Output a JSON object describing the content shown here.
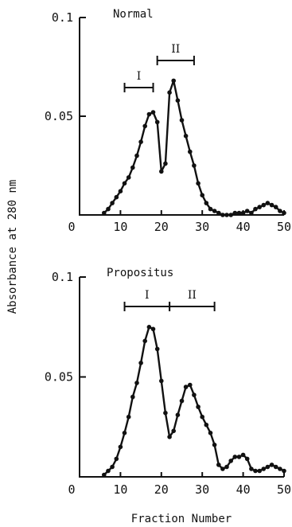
{
  "chart_data": [
    {
      "type": "line",
      "title": "Normal",
      "xlabel": "Fraction Number",
      "ylabel": "Absorbance at 280 nm",
      "xlim": [
        0,
        50
      ],
      "ylim": [
        0,
        0.1
      ],
      "x_ticks": [
        "0",
        "10",
        "20",
        "30",
        "40",
        "50"
      ],
      "y_ticks": [
        "0.1",
        "0.05"
      ],
      "grid": false,
      "peaks": [
        {
          "label": "I",
          "range": [
            11,
            18
          ]
        },
        {
          "label": "II",
          "range": [
            19,
            28
          ]
        }
      ],
      "series": [
        {
          "x": [
            6,
            7,
            8,
            9,
            10,
            11,
            12,
            13,
            14,
            15,
            16,
            17,
            18,
            19,
            20,
            21,
            22,
            23,
            24,
            25,
            26,
            27,
            28,
            29,
            30,
            31,
            32,
            33,
            34,
            35,
            36,
            37,
            38,
            39,
            40,
            41,
            42,
            43,
            44,
            45,
            46,
            47,
            48,
            49,
            50
          ],
          "values": [
            0.001,
            0.003,
            0.006,
            0.009,
            0.012,
            0.016,
            0.019,
            0.024,
            0.03,
            0.037,
            0.045,
            0.051,
            0.052,
            0.047,
            0.022,
            0.026,
            0.062,
            0.068,
            0.058,
            0.048,
            0.04,
            0.032,
            0.025,
            0.016,
            0.01,
            0.006,
            0.003,
            0.002,
            0.001,
            0.0,
            0.0,
            0.0,
            0.001,
            0.001,
            0.001,
            0.002,
            0.001,
            0.003,
            0.004,
            0.005,
            0.006,
            0.005,
            0.004,
            0.002,
            0.001
          ]
        }
      ]
    },
    {
      "type": "line",
      "title": "Propositus",
      "xlabel": "Fraction Number",
      "ylabel": "Absorbance at 280 nm",
      "xlim": [
        0,
        50
      ],
      "ylim": [
        0,
        0.1
      ],
      "x_ticks": [
        "0",
        "10",
        "20",
        "30",
        "40",
        "50"
      ],
      "y_ticks": [
        "0.1",
        "0.05"
      ],
      "grid": false,
      "peaks": [
        {
          "label": "I",
          "range": [
            11,
            22
          ]
        },
        {
          "label": "II",
          "range": [
            22,
            33
          ]
        }
      ],
      "series": [
        {
          "x": [
            6,
            7,
            8,
            9,
            10,
            11,
            12,
            13,
            14,
            15,
            16,
            17,
            18,
            19,
            20,
            21,
            22,
            23,
            24,
            25,
            26,
            27,
            28,
            29,
            30,
            31,
            32,
            33,
            34,
            35,
            36,
            37,
            38,
            39,
            40,
            41,
            42,
            43,
            44,
            45,
            46,
            47,
            48,
            49,
            50
          ],
          "values": [
            0.001,
            0.003,
            0.005,
            0.009,
            0.015,
            0.022,
            0.03,
            0.04,
            0.047,
            0.057,
            0.068,
            0.075,
            0.074,
            0.064,
            0.048,
            0.032,
            0.02,
            0.023,
            0.031,
            0.038,
            0.045,
            0.046,
            0.041,
            0.035,
            0.03,
            0.026,
            0.022,
            0.016,
            0.006,
            0.004,
            0.005,
            0.008,
            0.01,
            0.01,
            0.011,
            0.009,
            0.004,
            0.003,
            0.003,
            0.004,
            0.005,
            0.006,
            0.005,
            0.004,
            0.003
          ]
        }
      ]
    }
  ]
}
